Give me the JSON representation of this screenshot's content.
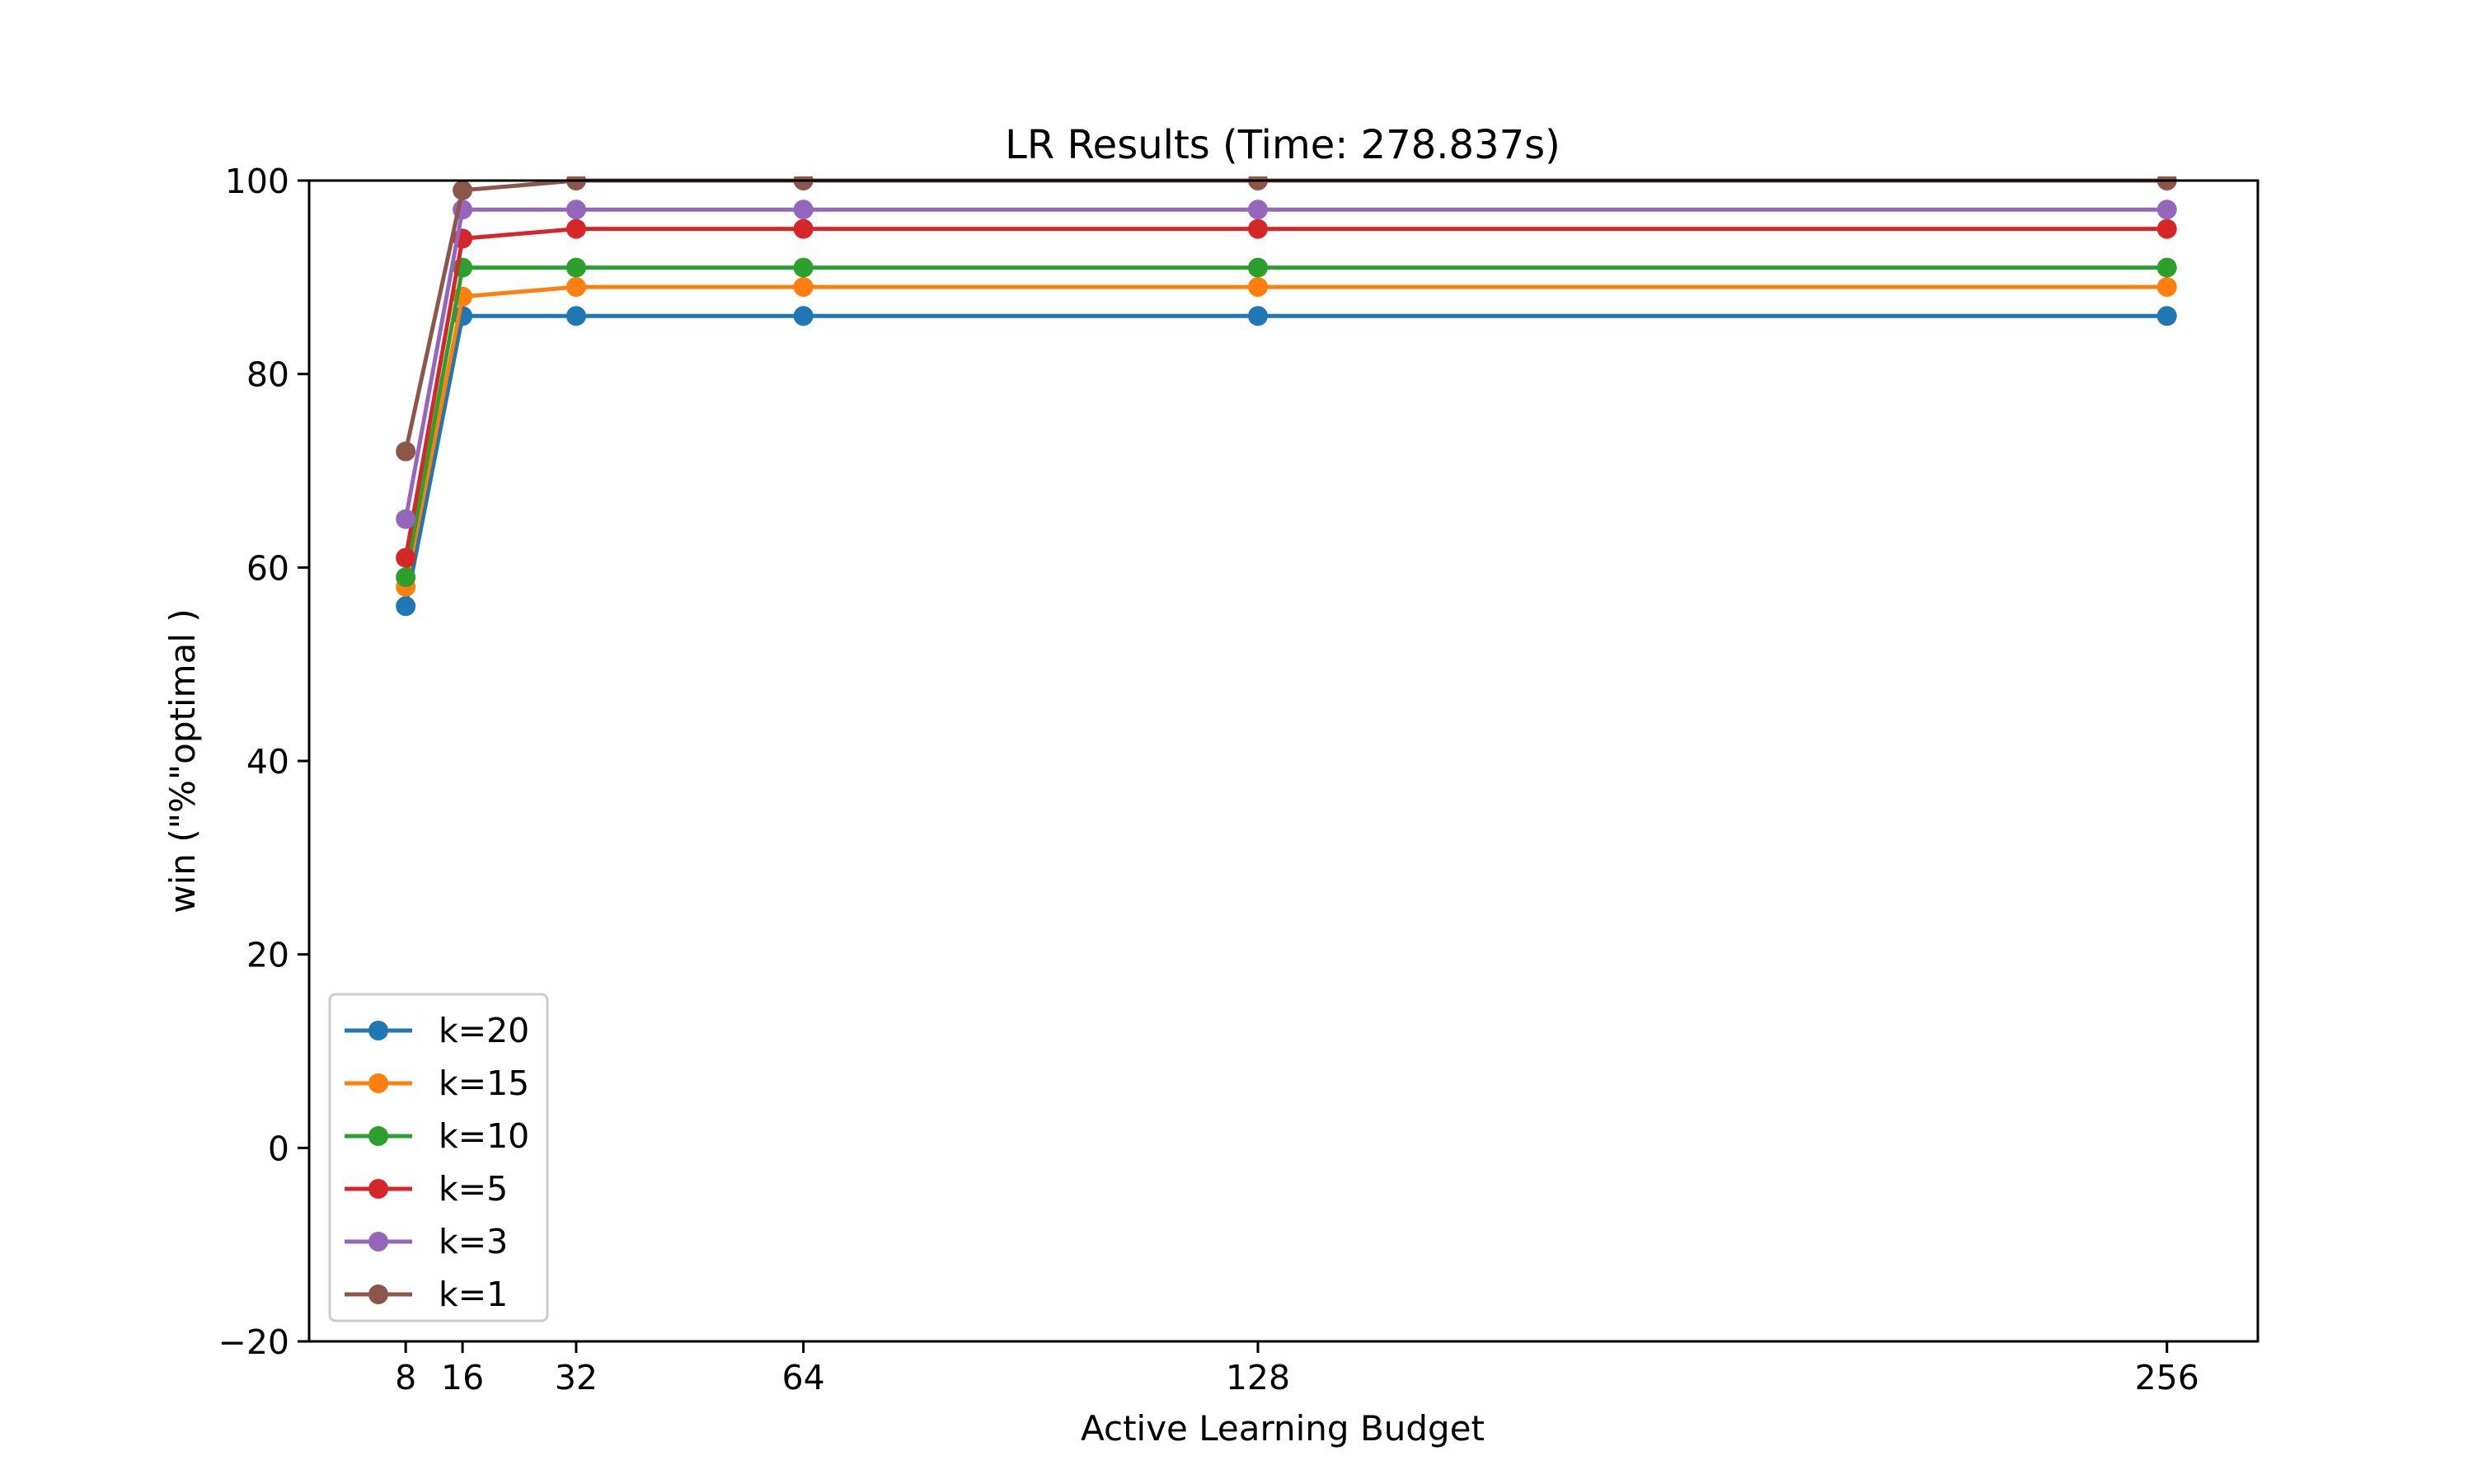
{
  "chart_data": {
    "type": "line",
    "title": "LR Results (Time: 278.837s)",
    "xlabel": "Active Learning Budget",
    "ylabel": "win (\"%\"optimal )",
    "x": [
      8,
      16,
      32,
      64,
      128,
      256
    ],
    "x_tick_labels": [
      "8",
      "16",
      "32",
      "64",
      "128",
      "256"
    ],
    "xlim": [
      -5.6,
      268.8
    ],
    "ylim": [
      -20,
      100
    ],
    "y_ticks": [
      -20,
      0,
      20,
      40,
      60,
      80,
      100
    ],
    "y_tick_labels": [
      "−20",
      "0",
      "20",
      "40",
      "60",
      "80",
      "100"
    ],
    "grid": false,
    "legend_position": "lower-left",
    "series": [
      {
        "name": "k=20",
        "color": "#1f77b4",
        "values": [
          56,
          86,
          86,
          86,
          86,
          86
        ]
      },
      {
        "name": "k=15",
        "color": "#ff7f0e",
        "values": [
          58,
          88,
          89,
          89,
          89,
          89
        ]
      },
      {
        "name": "k=10",
        "color": "#2ca02c",
        "values": [
          59,
          91,
          91,
          91,
          91,
          91
        ]
      },
      {
        "name": "k=5",
        "color": "#d62728",
        "values": [
          61,
          94,
          95,
          95,
          95,
          95
        ]
      },
      {
        "name": "k=3",
        "color": "#9467bd",
        "values": [
          65,
          97,
          97,
          97,
          97,
          97
        ]
      },
      {
        "name": "k=1",
        "color": "#8c564b",
        "values": [
          72,
          99,
          100,
          100,
          100,
          100
        ]
      }
    ]
  }
}
